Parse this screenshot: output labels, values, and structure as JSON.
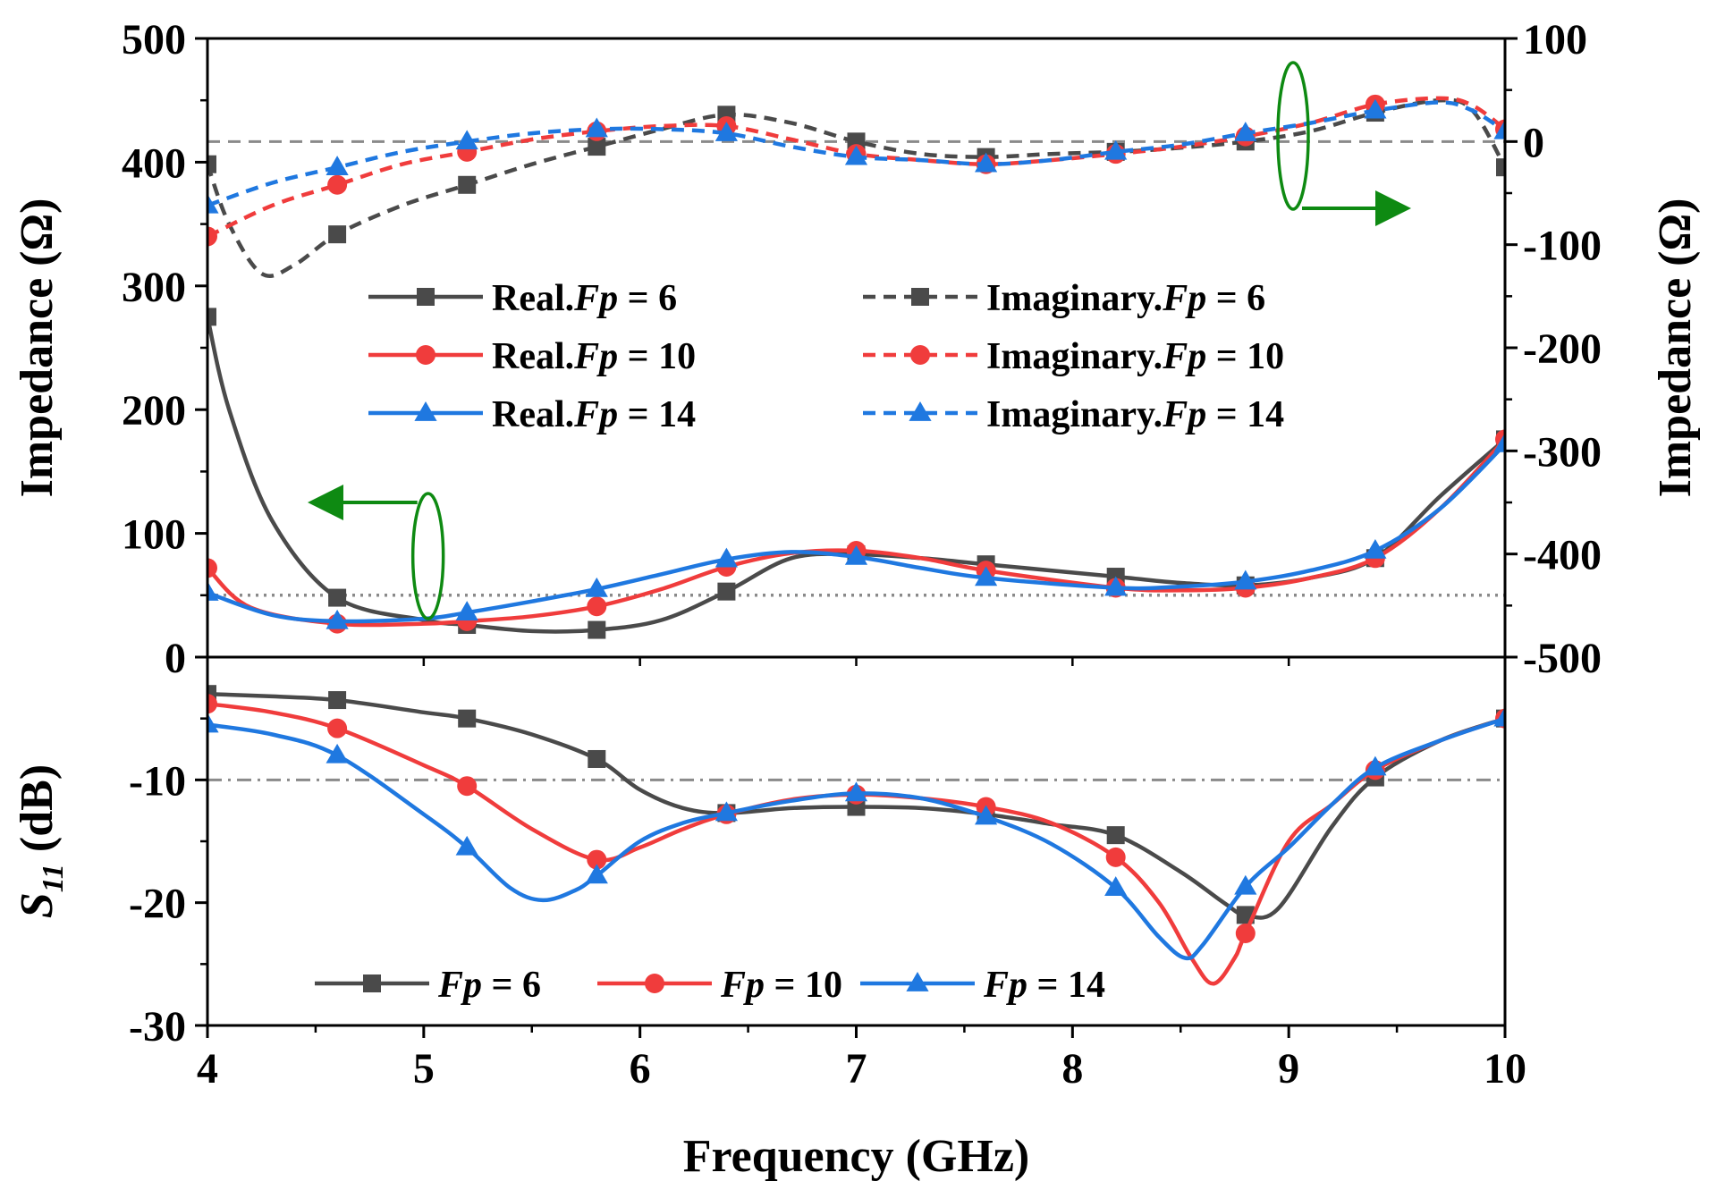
{
  "colors": {
    "fp6": "#4a4a4a",
    "fp10": "#f03c3c",
    "fp14": "#1f78e0",
    "reference": "#8a8a8a",
    "arrow": "#0e8a12"
  },
  "chart_data": [
    {
      "id": "impedance",
      "type": "line",
      "xlim": [
        4,
        10
      ],
      "ylim": [
        0,
        500
      ],
      "y2lim": [
        -500,
        100
      ],
      "ylabel": "Impedance (Ω)",
      "y2label": "Impedance (Ω)",
      "yticks": [
        "0",
        "100",
        "200",
        "300",
        "400",
        "500"
      ],
      "y2ticks": [
        "-500",
        "-400",
        "-300",
        "-200",
        "-100",
        "0",
        "100"
      ],
      "reference_lines": [
        {
          "name": "real-50-ohm",
          "axis": "left",
          "value": 50,
          "style": "dotted"
        },
        {
          "name": "imag-zero",
          "axis": "right",
          "value": 0,
          "style": "dashed"
        }
      ],
      "series": [
        {
          "name": "Real.Fp = 6",
          "prefix": "Real.",
          "fp": "6",
          "axis": "left",
          "style": "solid",
          "marker": "square",
          "color_key": "fp6",
          "x": [
            4.0,
            4.1,
            4.3,
            4.6,
            5.0,
            5.2,
            5.5,
            5.8,
            6.1,
            6.4,
            6.7,
            7.0,
            7.3,
            7.6,
            8.2,
            8.5,
            8.8,
            9.1,
            9.4,
            9.7,
            10.0
          ],
          "y": [
            275,
            200,
            110,
            48,
            30,
            26,
            21,
            22,
            30,
            53,
            80,
            83,
            80,
            75,
            65,
            60,
            58,
            64,
            80,
            130,
            176
          ]
        },
        {
          "name": "Real.Fp = 10",
          "prefix": "Real.",
          "fp": "10",
          "axis": "left",
          "style": "solid",
          "marker": "circle",
          "color_key": "fp10",
          "x": [
            4.0,
            4.2,
            4.6,
            5.0,
            5.2,
            5.5,
            5.8,
            6.1,
            6.4,
            6.7,
            7.0,
            7.3,
            7.6,
            8.2,
            8.5,
            8.8,
            9.1,
            9.4,
            9.7,
            10.0
          ],
          "y": [
            72,
            40,
            27,
            27,
            29,
            33,
            41,
            55,
            73,
            84,
            86,
            80,
            70,
            56,
            54,
            56,
            64,
            80,
            120,
            176
          ]
        },
        {
          "name": "Real.Fp = 14",
          "prefix": "Real.",
          "fp": "14",
          "axis": "left",
          "style": "solid",
          "marker": "triangle",
          "color_key": "fp14",
          "x": [
            4.0,
            4.3,
            4.6,
            5.0,
            5.2,
            5.5,
            5.8,
            6.1,
            6.4,
            6.7,
            7.0,
            7.3,
            7.6,
            8.2,
            8.5,
            8.8,
            9.1,
            9.4,
            9.7,
            10.0
          ],
          "y": [
            52,
            34,
            29,
            31,
            36,
            45,
            55,
            67,
            79,
            85,
            81,
            72,
            64,
            56,
            57,
            61,
            70,
            86,
            120,
            172
          ]
        },
        {
          "name": "Imaginary.Fp = 6",
          "prefix": "Imaginary.",
          "fp": "6",
          "axis": "right",
          "style": "dashed",
          "marker": "square",
          "color_key": "fp6",
          "x": [
            4.0,
            4.1,
            4.25,
            4.4,
            4.6,
            4.9,
            5.2,
            5.5,
            5.8,
            6.1,
            6.4,
            6.7,
            7.0,
            7.3,
            7.6,
            7.9,
            8.2,
            8.5,
            8.8,
            9.1,
            9.4,
            9.7,
            9.85,
            10.0
          ],
          "y": [
            -22,
            -80,
            -128,
            -120,
            -90,
            -62,
            -42,
            -22,
            -5,
            12,
            26,
            18,
            0,
            -12,
            -15,
            -12,
            -10,
            -6,
            0,
            10,
            28,
            40,
            30,
            -25
          ]
        },
        {
          "name": "Imaginary.Fp = 10",
          "prefix": "Imaginary.",
          "fp": "10",
          "axis": "right",
          "style": "dashed",
          "marker": "circle",
          "color_key": "fp10",
          "x": [
            4.0,
            4.3,
            4.6,
            4.9,
            5.2,
            5.5,
            5.8,
            6.1,
            6.4,
            6.7,
            7.0,
            7.3,
            7.6,
            7.9,
            8.2,
            8.5,
            8.8,
            9.1,
            9.4,
            9.7,
            9.85,
            10.0
          ],
          "y": [
            -92,
            -62,
            -42,
            -22,
            -10,
            2,
            10,
            15,
            15,
            2,
            -12,
            -18,
            -22,
            -18,
            -12,
            -5,
            5,
            18,
            36,
            42,
            35,
            12
          ]
        },
        {
          "name": "Imaginary.Fp = 14",
          "prefix": "Imaginary.",
          "fp": "14",
          "axis": "right",
          "style": "dashed",
          "marker": "triangle",
          "color_key": "fp14",
          "x": [
            4.0,
            4.3,
            4.6,
            4.9,
            5.2,
            5.5,
            5.8,
            6.1,
            6.4,
            6.7,
            7.0,
            7.3,
            7.6,
            7.9,
            8.2,
            8.5,
            8.8,
            9.1,
            9.4,
            9.7,
            9.85,
            10.0
          ],
          "y": [
            -62,
            -40,
            -25,
            -10,
            0,
            8,
            12,
            12,
            8,
            -5,
            -15,
            -18,
            -22,
            -18,
            -10,
            -3,
            8,
            18,
            30,
            38,
            30,
            10
          ]
        }
      ],
      "annotations": [
        {
          "name": "ellipse-real",
          "points_to": "left axis"
        },
        {
          "name": "ellipse-imaginary",
          "points_to": "right axis"
        }
      ],
      "legend": {
        "position": "center",
        "columns": 2
      }
    },
    {
      "id": "s11",
      "type": "line",
      "xlim": [
        4,
        10
      ],
      "ylim": [
        -30,
        0
      ],
      "ylabel_main": "S",
      "ylabel_sub": "11",
      "ylabel_unit": " (dB)",
      "yticks": [
        "-30",
        "-20",
        "-10"
      ],
      "xticks": [
        "4",
        "5",
        "6",
        "7",
        "8",
        "9",
        "10"
      ],
      "xlabel": "Frequency (GHz)",
      "reference_lines": [
        {
          "name": "minus-10-db",
          "axis": "left",
          "value": -10,
          "style": "dashdot"
        }
      ],
      "series": [
        {
          "name": "Fp = 6",
          "fp": "6",
          "style": "solid",
          "marker": "square",
          "color_key": "fp6",
          "x": [
            4.0,
            4.3,
            4.6,
            5.0,
            5.2,
            5.5,
            5.8,
            6.0,
            6.2,
            6.4,
            6.7,
            7.0,
            7.3,
            7.6,
            7.9,
            8.2,
            8.5,
            8.7,
            8.8,
            8.95,
            9.2,
            9.4,
            9.7,
            10.0
          ],
          "y": [
            -3.0,
            -3.2,
            -3.5,
            -4.5,
            -5.0,
            -6.3,
            -8.3,
            -10.8,
            -12.3,
            -12.7,
            -12.3,
            -12.2,
            -12.3,
            -12.8,
            -13.6,
            -14.5,
            -17.5,
            -20.0,
            -21.0,
            -20.5,
            -13.8,
            -9.8,
            -6.8,
            -5.0
          ]
        },
        {
          "name": "Fp = 10",
          "fp": "10",
          "style": "solid",
          "marker": "circle",
          "color_key": "fp10",
          "x": [
            4.0,
            4.3,
            4.6,
            5.0,
            5.2,
            5.5,
            5.8,
            6.0,
            6.2,
            6.4,
            6.7,
            7.0,
            7.3,
            7.6,
            7.9,
            8.2,
            8.4,
            8.55,
            8.65,
            8.75,
            8.8,
            9.0,
            9.2,
            9.4,
            9.7,
            10.0
          ],
          "y": [
            -3.8,
            -4.5,
            -5.8,
            -8.8,
            -10.5,
            -14.0,
            -16.5,
            -15.5,
            -14.0,
            -12.8,
            -11.6,
            -11.2,
            -11.5,
            -12.2,
            -13.5,
            -16.3,
            -20.0,
            -24.5,
            -26.6,
            -24.5,
            -22.5,
            -15.0,
            -12.0,
            -9.2,
            -6.8,
            -5.0
          ]
        },
        {
          "name": "Fp = 14",
          "fp": "14",
          "style": "solid",
          "marker": "triangle",
          "color_key": "fp14",
          "x": [
            4.0,
            4.3,
            4.6,
            5.0,
            5.2,
            5.4,
            5.55,
            5.7,
            5.8,
            6.0,
            6.2,
            6.4,
            6.7,
            7.0,
            7.3,
            7.6,
            7.9,
            8.2,
            8.4,
            8.52,
            8.6,
            8.8,
            9.0,
            9.2,
            9.4,
            9.7,
            10.0
          ],
          "y": [
            -5.5,
            -6.3,
            -8.0,
            -12.8,
            -15.5,
            -18.8,
            -19.8,
            -19.0,
            -17.8,
            -15.0,
            -13.5,
            -12.7,
            -11.7,
            -11.1,
            -11.5,
            -13.0,
            -15.2,
            -18.8,
            -22.8,
            -24.5,
            -23.5,
            -18.7,
            -15.5,
            -12.0,
            -9.0,
            -6.8,
            -5.0
          ]
        }
      ],
      "legend": {
        "position": "bottom",
        "columns": 3
      }
    }
  ]
}
